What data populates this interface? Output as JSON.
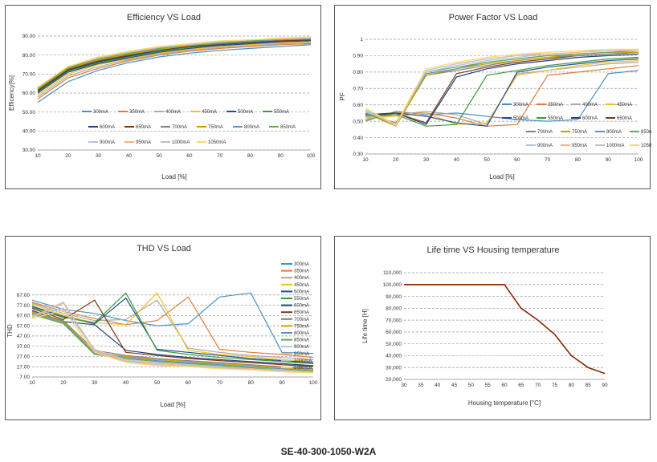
{
  "footer": "SE-40-300-1050-W2A",
  "chart_data": [
    {
      "id": "eff",
      "type": "line",
      "title": "Efficiency VS Load",
      "xlabel": "Load [%]",
      "ylabel": "Efficency[%]",
      "x": [
        10,
        20,
        30,
        40,
        50,
        60,
        70,
        80,
        90,
        100
      ],
      "xticks": [
        "10",
        "20",
        "30",
        "40",
        "50",
        "60",
        "70",
        "80",
        "90",
        "100"
      ],
      "yticks": [
        "30.00",
        "40.00",
        "50.00",
        "60.00",
        "70.00",
        "80.00",
        "90.00"
      ],
      "ylim": [
        30,
        90
      ],
      "grid": "horizontal-dashed",
      "legend_placement": "center",
      "series": [
        {
          "name": "300mA",
          "color": "#4a90c8",
          "values": [
            55,
            66,
            72,
            76,
            79,
            81,
            82.5,
            83.5,
            84.5,
            85.5
          ]
        },
        {
          "name": "350mA",
          "color": "#e07b39",
          "values": [
            57,
            68,
            73,
            77,
            80,
            82,
            83.5,
            84.5,
            85.5,
            86
          ]
        },
        {
          "name": "400mA",
          "color": "#a9a9a9",
          "values": [
            58,
            69,
            74,
            77.5,
            80.5,
            82.5,
            84,
            85,
            86,
            86.5
          ]
        },
        {
          "name": "450mA",
          "color": "#f2c01e",
          "values": [
            59,
            70,
            75,
            78,
            81,
            83,
            84.5,
            85.5,
            86.5,
            87
          ]
        },
        {
          "name": "500mA",
          "color": "#1f4e8c",
          "values": [
            60,
            71,
            75.5,
            78.5,
            81.5,
            83.5,
            85,
            86,
            87,
            87.5
          ]
        },
        {
          "name": "550mA",
          "color": "#3a9a3a",
          "values": [
            60.5,
            71.5,
            76,
            79,
            82,
            84,
            85.5,
            86.5,
            87.5,
            88
          ]
        },
        {
          "name": "600mA",
          "color": "#1f3f7a",
          "values": [
            61,
            72,
            76.5,
            79.5,
            82.5,
            84.5,
            85.5,
            86.5,
            87.5,
            88
          ]
        },
        {
          "name": "650mA",
          "color": "#7a3a10",
          "values": [
            61.5,
            72.5,
            77,
            80,
            83,
            84.5,
            86,
            87,
            87.5,
            88
          ]
        },
        {
          "name": "700mA",
          "color": "#7f7f7f",
          "values": [
            62,
            73,
            77.5,
            80.5,
            83,
            85,
            86,
            87,
            88,
            88.5
          ]
        },
        {
          "name": "750mA",
          "color": "#c9a000",
          "values": [
            62,
            73,
            77.5,
            80.5,
            83,
            85,
            86.5,
            87.5,
            88,
            88.5
          ]
        },
        {
          "name": "800mA",
          "color": "#5b8fc8",
          "values": [
            62.5,
            73.5,
            78,
            81,
            83.5,
            85.5,
            86.5,
            87.5,
            88,
            88.5
          ]
        },
        {
          "name": "850mA",
          "color": "#6aa84f",
          "values": [
            62.5,
            73.5,
            78,
            81,
            83.5,
            85.5,
            86.5,
            87.5,
            88.5,
            89
          ]
        },
        {
          "name": "900mA",
          "color": "#b0c4de",
          "values": [
            63,
            74,
            78.5,
            81.5,
            84,
            85.5,
            87,
            88,
            88.5,
            89
          ]
        },
        {
          "name": "950mA",
          "color": "#f4b183",
          "values": [
            63,
            74,
            78.5,
            81.5,
            84,
            86,
            87,
            88,
            88.5,
            89
          ]
        },
        {
          "name": "1000mA",
          "color": "#c0c0c0",
          "values": [
            63,
            74,
            78.5,
            81.5,
            84,
            86,
            87,
            88,
            89,
            89
          ]
        },
        {
          "name": "1050mA",
          "color": "#ffd966",
          "values": [
            63,
            74,
            79,
            82,
            84.5,
            86,
            87.5,
            88,
            89,
            89.5
          ]
        }
      ]
    },
    {
      "id": "pf",
      "type": "line",
      "title": "Power Factor VS Load",
      "xlabel": "Load [%]",
      "ylabel": "PF",
      "x": [
        10,
        20,
        30,
        40,
        50,
        60,
        70,
        80,
        90,
        100
      ],
      "xticks": [
        "10",
        "20",
        "30",
        "40",
        "50",
        "60",
        "70",
        "80",
        "90",
        "100"
      ],
      "yticks": [
        "0.30",
        "0.40",
        "0.50",
        "0.60",
        "0.70",
        "0.80",
        "0.90",
        "1"
      ],
      "ylim": [
        0.3,
        1.0
      ],
      "grid": "horizontal-dashed",
      "legend_placement": "right",
      "series": [
        {
          "name": "300mA",
          "color": "#4a90c8",
          "values": [
            0.5,
            0.56,
            0.54,
            0.55,
            0.53,
            0.51,
            0.5,
            0.51,
            0.79,
            0.81
          ]
        },
        {
          "name": "350mA",
          "color": "#e07b39",
          "values": [
            0.51,
            0.55,
            0.55,
            0.52,
            0.47,
            0.48,
            0.78,
            0.8,
            0.82,
            0.84
          ]
        },
        {
          "name": "400mA",
          "color": "#a9a9a9",
          "values": [
            0.52,
            0.54,
            0.56,
            0.54,
            0.48,
            0.79,
            0.81,
            0.83,
            0.85,
            0.86
          ]
        },
        {
          "name": "450mA",
          "color": "#f2c01e",
          "values": [
            0.52,
            0.53,
            0.55,
            0.48,
            0.49,
            0.78,
            0.81,
            0.84,
            0.86,
            0.87
          ]
        },
        {
          "name": "500mA",
          "color": "#1f4e8c",
          "values": [
            0.53,
            0.55,
            0.53,
            0.49,
            0.47,
            0.8,
            0.83,
            0.85,
            0.87,
            0.88
          ]
        },
        {
          "name": "550mA",
          "color": "#3a9a3a",
          "values": [
            0.53,
            0.54,
            0.47,
            0.48,
            0.78,
            0.81,
            0.84,
            0.86,
            0.88,
            0.89
          ]
        },
        {
          "name": "600mA",
          "color": "#1f3f7a",
          "values": [
            0.54,
            0.55,
            0.48,
            0.77,
            0.82,
            0.85,
            0.87,
            0.89,
            0.9,
            0.91
          ]
        },
        {
          "name": "650mA",
          "color": "#7a3a10",
          "values": [
            0.54,
            0.55,
            0.49,
            0.79,
            0.83,
            0.86,
            0.88,
            0.9,
            0.91,
            0.92
          ]
        },
        {
          "name": "700mA",
          "color": "#7f7f7f",
          "values": [
            0.55,
            0.49,
            0.78,
            0.81,
            0.84,
            0.87,
            0.89,
            0.9,
            0.91,
            0.92
          ]
        },
        {
          "name": "750mA",
          "color": "#c9a000",
          "values": [
            0.55,
            0.47,
            0.78,
            0.82,
            0.85,
            0.87,
            0.89,
            0.91,
            0.92,
            0.92
          ]
        },
        {
          "name": "800mA",
          "color": "#5b8fc8",
          "values": [
            0.55,
            0.48,
            0.79,
            0.82,
            0.86,
            0.88,
            0.9,
            0.91,
            0.92,
            0.93
          ]
        },
        {
          "name": "850mA",
          "color": "#6aa84f",
          "values": [
            0.56,
            0.47,
            0.8,
            0.83,
            0.86,
            0.88,
            0.9,
            0.91,
            0.92,
            0.93
          ]
        },
        {
          "name": "900mA",
          "color": "#b0c4de",
          "values": [
            0.56,
            0.48,
            0.8,
            0.84,
            0.87,
            0.89,
            0.91,
            0.92,
            0.93,
            0.93
          ]
        },
        {
          "name": "950mA",
          "color": "#f4b183",
          "values": [
            0.57,
            0.47,
            0.81,
            0.85,
            0.88,
            0.9,
            0.91,
            0.92,
            0.93,
            0.93
          ]
        },
        {
          "name": "1000mA",
          "color": "#c0c0c0",
          "values": [
            0.57,
            0.48,
            0.81,
            0.85,
            0.88,
            0.9,
            0.92,
            0.93,
            0.93,
            0.94
          ]
        },
        {
          "name": "1050mA",
          "color": "#ffd966",
          "values": [
            0.58,
            0.48,
            0.82,
            0.86,
            0.89,
            0.91,
            0.92,
            0.93,
            0.94,
            0.94
          ]
        }
      ]
    },
    {
      "id": "thd",
      "type": "line",
      "title": "THD VS Load",
      "xlabel": "Load [%]",
      "ylabel": "THD",
      "x": [
        10,
        20,
        30,
        40,
        50,
        60,
        70,
        80,
        90,
        100
      ],
      "xticks": [
        "10",
        "20",
        "30",
        "40",
        "50",
        "60",
        "70",
        "80",
        "90",
        "100"
      ],
      "yticks": [
        "7.00",
        "17.00",
        "27.00",
        "37.00",
        "47.00",
        "57.00",
        "67.00",
        "77.00",
        "87.00"
      ],
      "ylim": [
        7,
        97
      ],
      "grid": "horizontal-dashed",
      "legend_placement": "right",
      "series": [
        {
          "name": "300mA",
          "color": "#4a90c8",
          "values": [
            82,
            73,
            69,
            62,
            57,
            59,
            85,
            89,
            31,
            30
          ]
        },
        {
          "name": "350mA",
          "color": "#e07b39",
          "values": [
            80,
            71,
            64,
            58,
            62,
            85,
            34,
            31,
            29,
            26
          ]
        },
        {
          "name": "400mA",
          "color": "#a9a9a9",
          "values": [
            79,
            69,
            62,
            63,
            82,
            35,
            31,
            28,
            26,
            24
          ]
        },
        {
          "name": "450mA",
          "color": "#f2c01e",
          "values": [
            78,
            67,
            60,
            58,
            89,
            33,
            29,
            27,
            24,
            22
          ]
        },
        {
          "name": "500mA",
          "color": "#1f4e8c",
          "values": [
            76,
            66,
            59,
            84,
            34,
            31,
            28,
            25,
            23,
            21
          ]
        },
        {
          "name": "550mA",
          "color": "#3a9a3a",
          "values": [
            75,
            65,
            60,
            89,
            33,
            29,
            26,
            24,
            22,
            20
          ]
        },
        {
          "name": "600mA",
          "color": "#1f3f7a",
          "values": [
            72,
            61,
            58,
            33,
            29,
            26,
            24,
            22,
            20,
            18
          ]
        },
        {
          "name": "650mA",
          "color": "#7a3a10",
          "values": [
            74,
            63,
            82,
            31,
            28,
            25,
            23,
            21,
            19,
            17
          ]
        },
        {
          "name": "700mA",
          "color": "#7f7f7f",
          "values": [
            71,
            62,
            33,
            28,
            25,
            23,
            21,
            19,
            17,
            15
          ]
        },
        {
          "name": "750mA",
          "color": "#c9a000",
          "values": [
            70,
            61,
            31,
            27,
            24,
            22,
            20,
            18,
            16,
            14
          ]
        },
        {
          "name": "800mA",
          "color": "#5b8fc8",
          "values": [
            69,
            60,
            30,
            26,
            23,
            21,
            19,
            17,
            15,
            13
          ]
        },
        {
          "name": "850mA",
          "color": "#6aa84f",
          "values": [
            68,
            59,
            29,
            25,
            22,
            20,
            18,
            16,
            14,
            13
          ]
        },
        {
          "name": "900mA",
          "color": "#b0c4de",
          "values": [
            67,
            74,
            34,
            24,
            21,
            19,
            17,
            15,
            14,
            12
          ]
        },
        {
          "name": "950mA",
          "color": "#f4b183",
          "values": [
            66,
            80,
            33,
            23,
            20,
            18,
            16,
            15,
            13,
            12
          ]
        },
        {
          "name": "1000mA",
          "color": "#c0c0c0",
          "values": [
            65,
            79,
            32,
            22,
            19,
            17,
            16,
            14,
            13,
            11
          ]
        },
        {
          "name": "1050mA",
          "color": "#ffd966",
          "values": [
            64,
            72,
            31,
            21,
            18,
            17,
            15,
            14,
            12,
            11
          ]
        }
      ]
    },
    {
      "id": "life",
      "type": "line",
      "title": "Life time VS Housing temperature",
      "xlabel": "Housing temperature [°C]",
      "ylabel": "Life time [H]",
      "x": [
        30,
        35,
        40,
        45,
        50,
        55,
        60,
        65,
        70,
        75,
        80,
        85,
        90
      ],
      "xticks": [
        "30",
        "35",
        "40",
        "45",
        "50",
        "55",
        "60",
        "65",
        "70",
        "75",
        "80",
        "85",
        "90"
      ],
      "yticks": [
        "20,000",
        "30,000",
        "40,000",
        "50,000",
        "60,000",
        "70,000",
        "80,000",
        "90,000",
        "100,000",
        "110,000"
      ],
      "ylim": [
        20000,
        110000
      ],
      "grid": "horizontal-dashed",
      "legend_placement": "none",
      "series": [
        {
          "name": "",
          "color": "#8b2500",
          "values": [
            100000,
            100000,
            100000,
            100000,
            100000,
            100000,
            100000,
            80000,
            70000,
            58000,
            40000,
            30000,
            25000
          ]
        }
      ]
    }
  ]
}
